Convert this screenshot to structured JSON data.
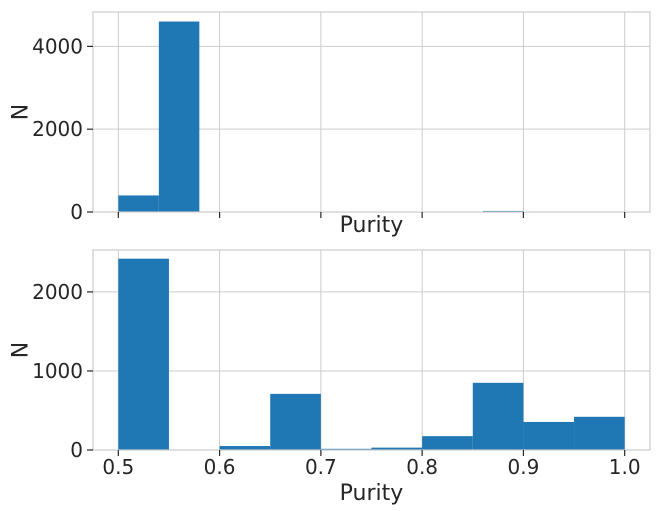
{
  "chart_data": [
    {
      "type": "bar",
      "xlabel": "Purity",
      "ylabel": "N",
      "xlim": [
        0.475,
        1.025
      ],
      "ylim": [
        0,
        4830
      ],
      "xticks": [
        0.5,
        0.6,
        0.7,
        0.8,
        0.9,
        1.0
      ],
      "xtick_labels_shown": false,
      "yticks": [
        0,
        2000,
        4000
      ],
      "ytick_labels": [
        "0",
        "2000",
        "4000"
      ],
      "grid": true,
      "bar_color": "#1f77b4",
      "bins": [
        {
          "x0": 0.5,
          "x1": 0.54,
          "count": 400
        },
        {
          "x0": 0.54,
          "x1": 0.58,
          "count": 4600
        },
        {
          "x0": 0.58,
          "x1": 0.62,
          "count": 0
        },
        {
          "x0": 0.62,
          "x1": 0.66,
          "count": 0
        },
        {
          "x0": 0.66,
          "x1": 0.7,
          "count": 0
        },
        {
          "x0": 0.7,
          "x1": 0.74,
          "count": 0
        },
        {
          "x0": 0.74,
          "x1": 0.78,
          "count": 0
        },
        {
          "x0": 0.78,
          "x1": 0.82,
          "count": 0
        },
        {
          "x0": 0.82,
          "x1": 0.86,
          "count": 0
        },
        {
          "x0": 0.86,
          "x1": 0.9,
          "count": 25
        }
      ]
    },
    {
      "type": "bar",
      "xlabel": "Purity",
      "ylabel": "N",
      "xlim": [
        0.475,
        1.025
      ],
      "ylim": [
        0,
        2530
      ],
      "xticks": [
        0.5,
        0.6,
        0.7,
        0.8,
        0.9,
        1.0
      ],
      "xtick_labels": [
        "0.5",
        "0.6",
        "0.7",
        "0.8",
        "0.9",
        "1.0"
      ],
      "xtick_labels_shown": true,
      "yticks": [
        0,
        1000,
        2000
      ],
      "ytick_labels": [
        "0",
        "1000",
        "2000"
      ],
      "grid": true,
      "bar_color": "#1f77b4",
      "bins": [
        {
          "x0": 0.5,
          "x1": 0.55,
          "count": 2420
        },
        {
          "x0": 0.55,
          "x1": 0.6,
          "count": 0
        },
        {
          "x0": 0.6,
          "x1": 0.65,
          "count": 50
        },
        {
          "x0": 0.65,
          "x1": 0.7,
          "count": 710
        },
        {
          "x0": 0.7,
          "x1": 0.75,
          "count": 15
        },
        {
          "x0": 0.75,
          "x1": 0.8,
          "count": 30
        },
        {
          "x0": 0.8,
          "x1": 0.85,
          "count": 175
        },
        {
          "x0": 0.85,
          "x1": 0.9,
          "count": 850
        },
        {
          "x0": 0.9,
          "x1": 0.95,
          "count": 355
        },
        {
          "x0": 0.95,
          "x1": 1.0,
          "count": 420
        }
      ]
    }
  ]
}
